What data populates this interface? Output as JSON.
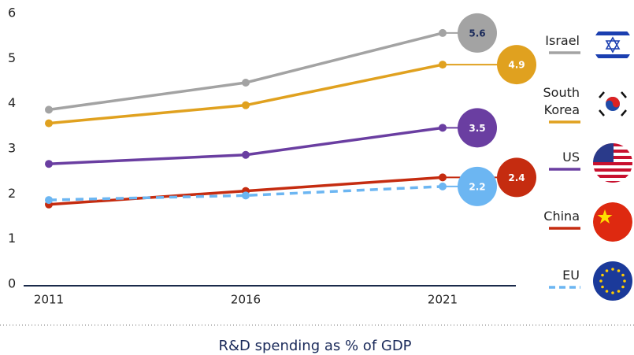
{
  "chart_data": {
    "type": "line",
    "title": "R&D spending as % of GDP",
    "categories": [
      "2011",
      "2016",
      "2021"
    ],
    "ylim": [
      0,
      6
    ],
    "yticks": [
      0,
      1,
      2,
      3,
      4,
      5,
      6
    ],
    "series": [
      {
        "name": "Israel",
        "color": "#a3a3a3",
        "values": [
          3.9,
          4.5,
          5.6
        ]
      },
      {
        "name": "South Korea",
        "color": "#e0a11f",
        "values": [
          3.6,
          4.0,
          4.9
        ]
      },
      {
        "name": "US",
        "color": "#6a3ea1",
        "values": [
          2.7,
          2.9,
          3.5
        ]
      },
      {
        "name": "China",
        "color": "#c52c10",
        "values": [
          1.8,
          2.1,
          2.4
        ]
      },
      {
        "name": "EU",
        "color": "#6cb6f2",
        "dashed": true,
        "values": [
          1.9,
          2.0,
          2.2
        ]
      }
    ]
  }
}
